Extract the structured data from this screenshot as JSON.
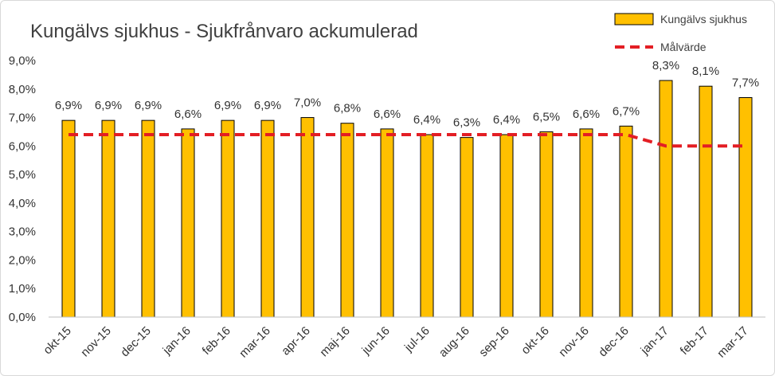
{
  "chart_data": {
    "type": "bar",
    "title": "Kungälvs sjukhus - Sjukfrånvaro ackumulerad",
    "categories": [
      "okt-15",
      "nov-15",
      "dec-15",
      "jan-16",
      "feb-16",
      "mar-16",
      "apr-16",
      "maj-16",
      "jun-16",
      "jul-16",
      "aug-16",
      "sep-16",
      "okt-16",
      "nov-16",
      "dec-16",
      "jan-17",
      "feb-17",
      "mar-17"
    ],
    "series": [
      {
        "name": "Kungälvs sjukhus",
        "kind": "bar",
        "color": "#FFC000",
        "values": [
          6.9,
          6.9,
          6.9,
          6.6,
          6.9,
          6.9,
          7.0,
          6.8,
          6.6,
          6.4,
          6.3,
          6.4,
          6.5,
          6.6,
          6.7,
          8.3,
          8.1,
          7.7
        ],
        "labels": [
          "6,9%",
          "6,9%",
          "6,9%",
          "6,6%",
          "6,9%",
          "6,9%",
          "7,0%",
          "6,8%",
          "6,6%",
          "6,4%",
          "6,3%",
          "6,4%",
          "6,5%",
          "6,6%",
          "6,7%",
          "8,3%",
          "8,1%",
          "7,7%"
        ]
      },
      {
        "name": "Målvärde",
        "kind": "line",
        "style": "dashed",
        "color": "#E31E24",
        "values": [
          6.4,
          6.4,
          6.4,
          6.4,
          6.4,
          6.4,
          6.4,
          6.4,
          6.4,
          6.4,
          6.4,
          6.4,
          6.4,
          6.4,
          6.4,
          6.0,
          6.0,
          6.0
        ]
      }
    ],
    "yticks": [
      "0,0%",
      "1,0%",
      "2,0%",
      "3,0%",
      "4,0%",
      "5,0%",
      "6,0%",
      "7,0%",
      "8,0%",
      "9,0%"
    ],
    "ylim": [
      0,
      9
    ],
    "xlabel": "",
    "ylabel": "",
    "grid": false,
    "legend_position": "top-right"
  }
}
